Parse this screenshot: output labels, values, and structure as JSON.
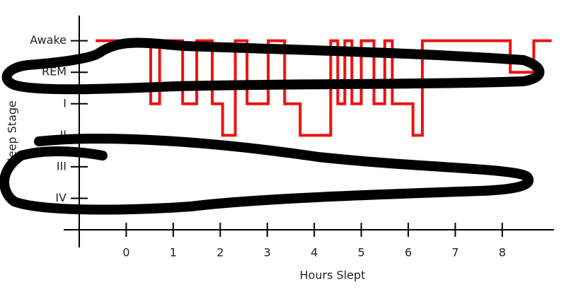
{
  "chart_data": {
    "type": "line",
    "step": "post",
    "xlabel": "Hours Slept",
    "ylabel": "Sleep Stage",
    "xlim": [
      -1,
      9.1
    ],
    "xticks": [
      0,
      1,
      2,
      3,
      4,
      5,
      6,
      7,
      8
    ],
    "ylim": [
      0,
      6.8
    ],
    "yticks": [
      {
        "value": 6,
        "label": "Awake"
      },
      {
        "value": 5,
        "label": "REM"
      },
      {
        "value": 4,
        "label": "I"
      },
      {
        "value": 3,
        "label": "II"
      },
      {
        "value": 2,
        "label": "III"
      },
      {
        "value": 1,
        "label": "IV"
      }
    ],
    "series": [
      {
        "color": "#ee1111",
        "x": [
          -0.65,
          0.52,
          0.71,
          1.2,
          1.5,
          1.83,
          2.05,
          2.32,
          2.57,
          3.02,
          3.37,
          3.7,
          4.35,
          4.5,
          4.65,
          4.8,
          5.0,
          5.27,
          5.5,
          5.66,
          6.1,
          6.3,
          8.17,
          8.67,
          9.05
        ],
        "values": [
          6,
          4,
          6,
          4,
          6,
          4,
          3,
          6,
          4,
          6,
          4,
          3,
          6,
          4,
          6,
          4,
          6,
          4,
          6,
          4,
          3,
          6,
          5,
          6,
          6
        ]
      }
    ]
  }
}
